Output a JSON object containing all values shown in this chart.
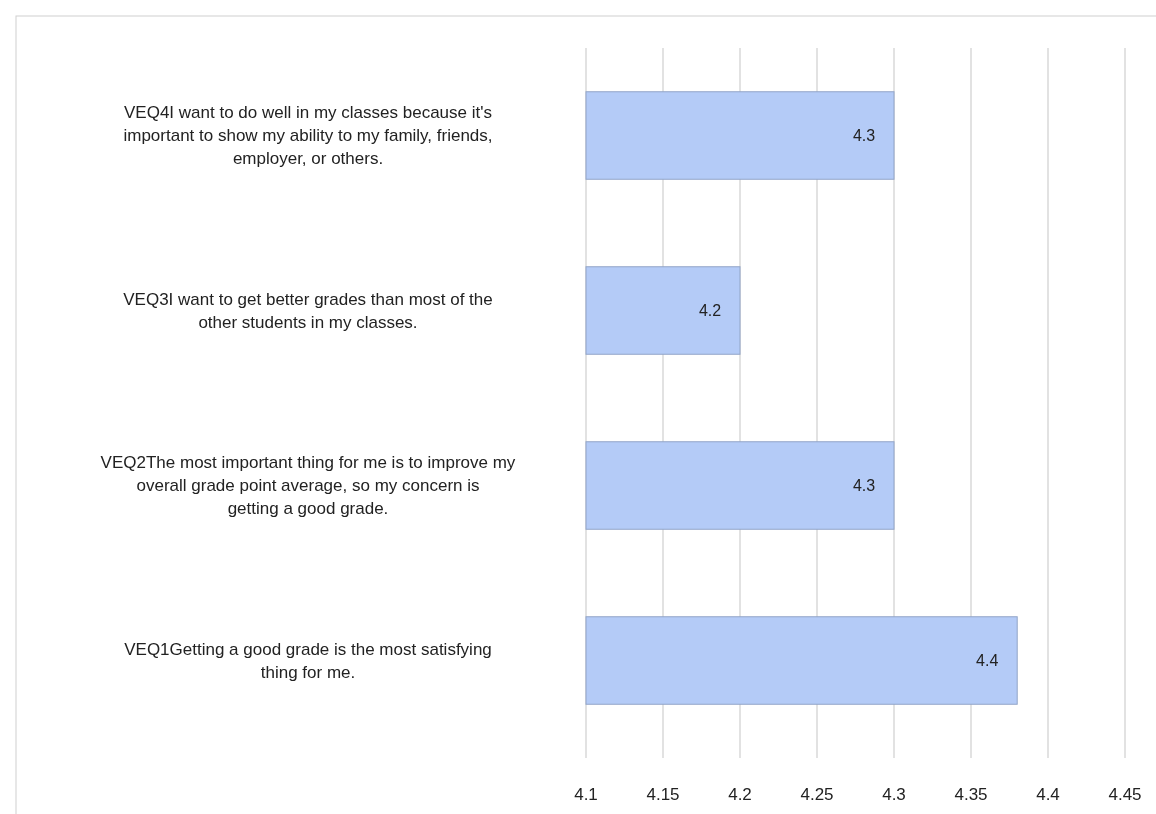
{
  "chart_data": {
    "type": "bar",
    "orientation": "horizontal",
    "categories": [
      "VEQ4I want to do well in my classes because it's important to show my ability to my family, friends, employer, or others.",
      "VEQ3I want to get better grades than most of the other students in my classes.",
      "VEQ2The most important thing for me is to improve my overall grade point average, so my concern is getting a good grade.",
      "VEQ1Getting a good grade is the most satisfying thing for me."
    ],
    "values": [
      4.3,
      4.2,
      4.3,
      4.38
    ],
    "value_labels": [
      "4.3",
      "4.2",
      "4.3",
      "4.4"
    ],
    "color": "#b4cbf7",
    "xlim": [
      4.1,
      4.45
    ],
    "xticks": [
      4.1,
      4.15,
      4.2,
      4.25,
      4.3,
      4.35,
      4.4,
      4.45
    ],
    "grid": "x"
  }
}
